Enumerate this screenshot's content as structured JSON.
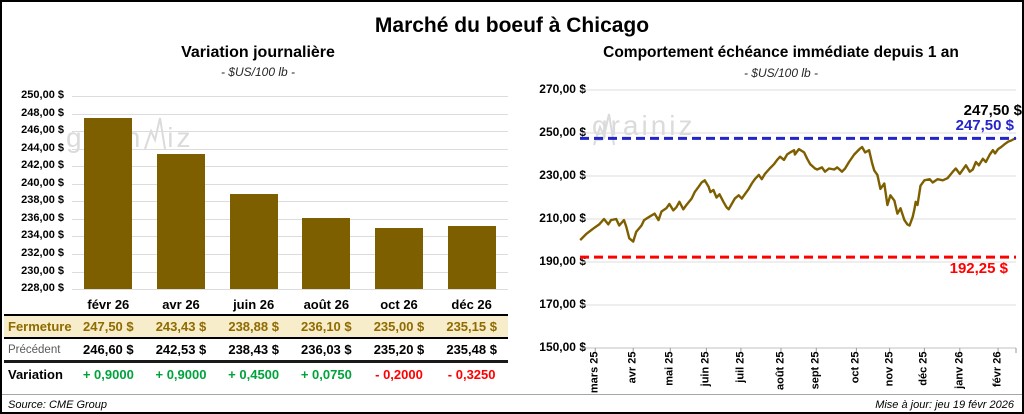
{
  "header": {
    "title": "Marché du boeuf à Chicago"
  },
  "watermark": {
    "prefix": "grain",
    "suffix": "iz"
  },
  "colors": {
    "gold": "#7D5F00",
    "gold_text": "#8F6B00",
    "beige": "#F7EDCB",
    "blue": "#2424CB",
    "red": "#FF0000",
    "green": "#00A33B",
    "grid": "#DCDCDC",
    "watermark": "#DBDBDB"
  },
  "chart_data": [
    {
      "type": "bar",
      "title": "Variation journalière",
      "subtitle": "- $US/100 lb -",
      "categories": [
        "févr 26",
        "avr 26",
        "juin 26",
        "août 26",
        "oct 26",
        "déc 26"
      ],
      "values": [
        247.5,
        243.43,
        238.88,
        236.1,
        235.0,
        235.15
      ],
      "ylim": [
        228,
        250
      ],
      "grid": true,
      "bar_color": "#7D5F00",
      "y_ticks": [
        {
          "value": 250,
          "label": "250,00 $"
        },
        {
          "value": 248,
          "label": "248,00 $"
        },
        {
          "value": 246,
          "label": "246,00 $"
        },
        {
          "value": 244,
          "label": "244,00 $"
        },
        {
          "value": 242,
          "label": "242,00 $"
        },
        {
          "value": 240,
          "label": "240,00 $"
        },
        {
          "value": 238,
          "label": "238,00 $"
        },
        {
          "value": 236,
          "label": "236,00 $"
        },
        {
          "value": 234,
          "label": "234,00 $"
        },
        {
          "value": 232,
          "label": "232,00 $"
        },
        {
          "value": 230,
          "label": "230,00 $"
        },
        {
          "value": 228,
          "label": "228,00 $"
        }
      ]
    },
    {
      "type": "line",
      "title": "Comportement échéance immédiate depuis 1 an",
      "subtitle": "- $US/100 lb -",
      "ylim": [
        150,
        270
      ],
      "grid": true,
      "line_color": "#7D5F00",
      "last_value_label": "247,50 $",
      "y_ticks": [
        {
          "value": 270,
          "label": "270,00 $"
        },
        {
          "value": 250,
          "label": "250,00 $"
        },
        {
          "value": 230,
          "label": "230,00 $"
        },
        {
          "value": 210,
          "label": "210,00 $"
        },
        {
          "value": 190,
          "label": "190,00 $"
        },
        {
          "value": 170,
          "label": "170,00 $"
        },
        {
          "value": 150,
          "label": "150,00 $"
        }
      ],
      "x_ticks": [
        {
          "label": "mars 25",
          "pos": 0.035
        },
        {
          "label": "avr 25",
          "pos": 0.122
        },
        {
          "label": "mai 25",
          "pos": 0.207
        },
        {
          "label": "juin 25",
          "pos": 0.29
        },
        {
          "label": "juil 25",
          "pos": 0.369
        },
        {
          "label": "août 25",
          "pos": 0.461
        },
        {
          "label": "sept 25",
          "pos": 0.542
        },
        {
          "label": "oct 25",
          "pos": 0.634
        },
        {
          "label": "nov 25",
          "pos": 0.71
        },
        {
          "label": "déc 25",
          "pos": 0.79
        },
        {
          "label": "janv 26",
          "pos": 0.871
        },
        {
          "label": "févr 26",
          "pos": 0.959
        }
      ],
      "ref_lines": [
        {
          "value": 247.5,
          "label": "247,50 $",
          "color": "#2424CB"
        },
        {
          "value": 192.25,
          "label": "192,25 $",
          "color": "#FF0000"
        }
      ],
      "points": [
        [
          0.002,
          200.5
        ],
        [
          0.014,
          203
        ],
        [
          0.03,
          205.5
        ],
        [
          0.044,
          207.5
        ],
        [
          0.055,
          210
        ],
        [
          0.065,
          207.5
        ],
        [
          0.071,
          209.5
        ],
        [
          0.083,
          210
        ],
        [
          0.09,
          207
        ],
        [
          0.101,
          209.5
        ],
        [
          0.106,
          206.5
        ],
        [
          0.113,
          201
        ],
        [
          0.122,
          199.5
        ],
        [
          0.129,
          204
        ],
        [
          0.141,
          207
        ],
        [
          0.147,
          209.5
        ],
        [
          0.159,
          211
        ],
        [
          0.171,
          212.5
        ],
        [
          0.18,
          209.5
        ],
        [
          0.187,
          213.5
        ],
        [
          0.198,
          215
        ],
        [
          0.205,
          217
        ],
        [
          0.214,
          214
        ],
        [
          0.221,
          215.5
        ],
        [
          0.228,
          218
        ],
        [
          0.237,
          214.5
        ],
        [
          0.244,
          216.5
        ],
        [
          0.256,
          219.5
        ],
        [
          0.263,
          222.5
        ],
        [
          0.272,
          225
        ],
        [
          0.279,
          227
        ],
        [
          0.286,
          228
        ],
        [
          0.295,
          225
        ],
        [
          0.299,
          222.5
        ],
        [
          0.306,
          223.5
        ],
        [
          0.313,
          220
        ],
        [
          0.32,
          221.5
        ],
        [
          0.329,
          218
        ],
        [
          0.336,
          215.5
        ],
        [
          0.341,
          214.5
        ],
        [
          0.348,
          217
        ],
        [
          0.355,
          219.5
        ],
        [
          0.364,
          221
        ],
        [
          0.371,
          219.5
        ],
        [
          0.378,
          221.5
        ],
        [
          0.387,
          224
        ],
        [
          0.394,
          226.5
        ],
        [
          0.401,
          228.5
        ],
        [
          0.41,
          230.5
        ],
        [
          0.417,
          228.5
        ],
        [
          0.424,
          231
        ],
        [
          0.435,
          233.5
        ],
        [
          0.445,
          235.5
        ],
        [
          0.452,
          237.5
        ],
        [
          0.459,
          239
        ],
        [
          0.468,
          237.5
        ],
        [
          0.475,
          240
        ],
        [
          0.482,
          241
        ],
        [
          0.491,
          242
        ],
        [
          0.493,
          240
        ],
        [
          0.502,
          242.5
        ],
        [
          0.514,
          241
        ],
        [
          0.521,
          238
        ],
        [
          0.528,
          235.5
        ],
        [
          0.539,
          233.5
        ],
        [
          0.544,
          233
        ],
        [
          0.555,
          234
        ],
        [
          0.562,
          232
        ],
        [
          0.571,
          233.5
        ],
        [
          0.583,
          233
        ],
        [
          0.59,
          234
        ],
        [
          0.601,
          232
        ],
        [
          0.608,
          233.5
        ],
        [
          0.617,
          236.5
        ],
        [
          0.629,
          240
        ],
        [
          0.641,
          242.5
        ],
        [
          0.647,
          243.5
        ],
        [
          0.654,
          241
        ],
        [
          0.663,
          242
        ],
        [
          0.67,
          236
        ],
        [
          0.675,
          232.5
        ],
        [
          0.682,
          230.5
        ],
        [
          0.689,
          224
        ],
        [
          0.698,
          226.5
        ],
        [
          0.705,
          216.5
        ],
        [
          0.712,
          221
        ],
        [
          0.721,
          218.5
        ],
        [
          0.728,
          212.5
        ],
        [
          0.735,
          215
        ],
        [
          0.744,
          209.5
        ],
        [
          0.751,
          207.5
        ],
        [
          0.756,
          207
        ],
        [
          0.763,
          211
        ],
        [
          0.767,
          214.5
        ],
        [
          0.77,
          218
        ],
        [
          0.774,
          216.5
        ],
        [
          0.781,
          225.5
        ],
        [
          0.79,
          228
        ],
        [
          0.802,
          228.5
        ],
        [
          0.809,
          227
        ],
        [
          0.82,
          228.5
        ],
        [
          0.832,
          228
        ],
        [
          0.843,
          229
        ],
        [
          0.855,
          232
        ],
        [
          0.862,
          233.5
        ],
        [
          0.871,
          231
        ],
        [
          0.885,
          235
        ],
        [
          0.894,
          232
        ],
        [
          0.901,
          233
        ],
        [
          0.908,
          236.5
        ],
        [
          0.915,
          235
        ],
        [
          0.924,
          238
        ],
        [
          0.931,
          236.5
        ],
        [
          0.94,
          240
        ],
        [
          0.947,
          242
        ],
        [
          0.952,
          240.5
        ],
        [
          0.959,
          242.5
        ],
        [
          0.966,
          243.5
        ],
        [
          0.975,
          245
        ],
        [
          0.982,
          246
        ],
        [
          0.989,
          246.5
        ],
        [
          0.998,
          247.5
        ]
      ]
    }
  ],
  "table": {
    "columns": [
      "févr 26",
      "avr 26",
      "juin 26",
      "août 26",
      "oct 26",
      "déc 26"
    ],
    "rows": {
      "fermeture": {
        "label": "Fermeture",
        "values": [
          "247,50 $",
          "243,43 $",
          "238,88 $",
          "236,10 $",
          "235,00 $",
          "235,15 $"
        ]
      },
      "precedent": {
        "label": "Précédent",
        "values": [
          "246,60 $",
          "242,53 $",
          "238,43 $",
          "236,03 $",
          "235,20 $",
          "235,48 $"
        ]
      },
      "variation": {
        "label": "Variation",
        "values": [
          {
            "text": "+ 0,9000",
            "dir": "up"
          },
          {
            "text": "+ 0,9000",
            "dir": "up"
          },
          {
            "text": "+ 0,4500",
            "dir": "up"
          },
          {
            "text": "+ 0,0750",
            "dir": "up"
          },
          {
            "text": "- 0,2000",
            "dir": "down"
          },
          {
            "text": "- 0,3250",
            "dir": "down"
          }
        ]
      }
    }
  },
  "footer": {
    "source": "Source: CME Group",
    "updated": "Mise à jour: jeu 19 févr 2026"
  }
}
